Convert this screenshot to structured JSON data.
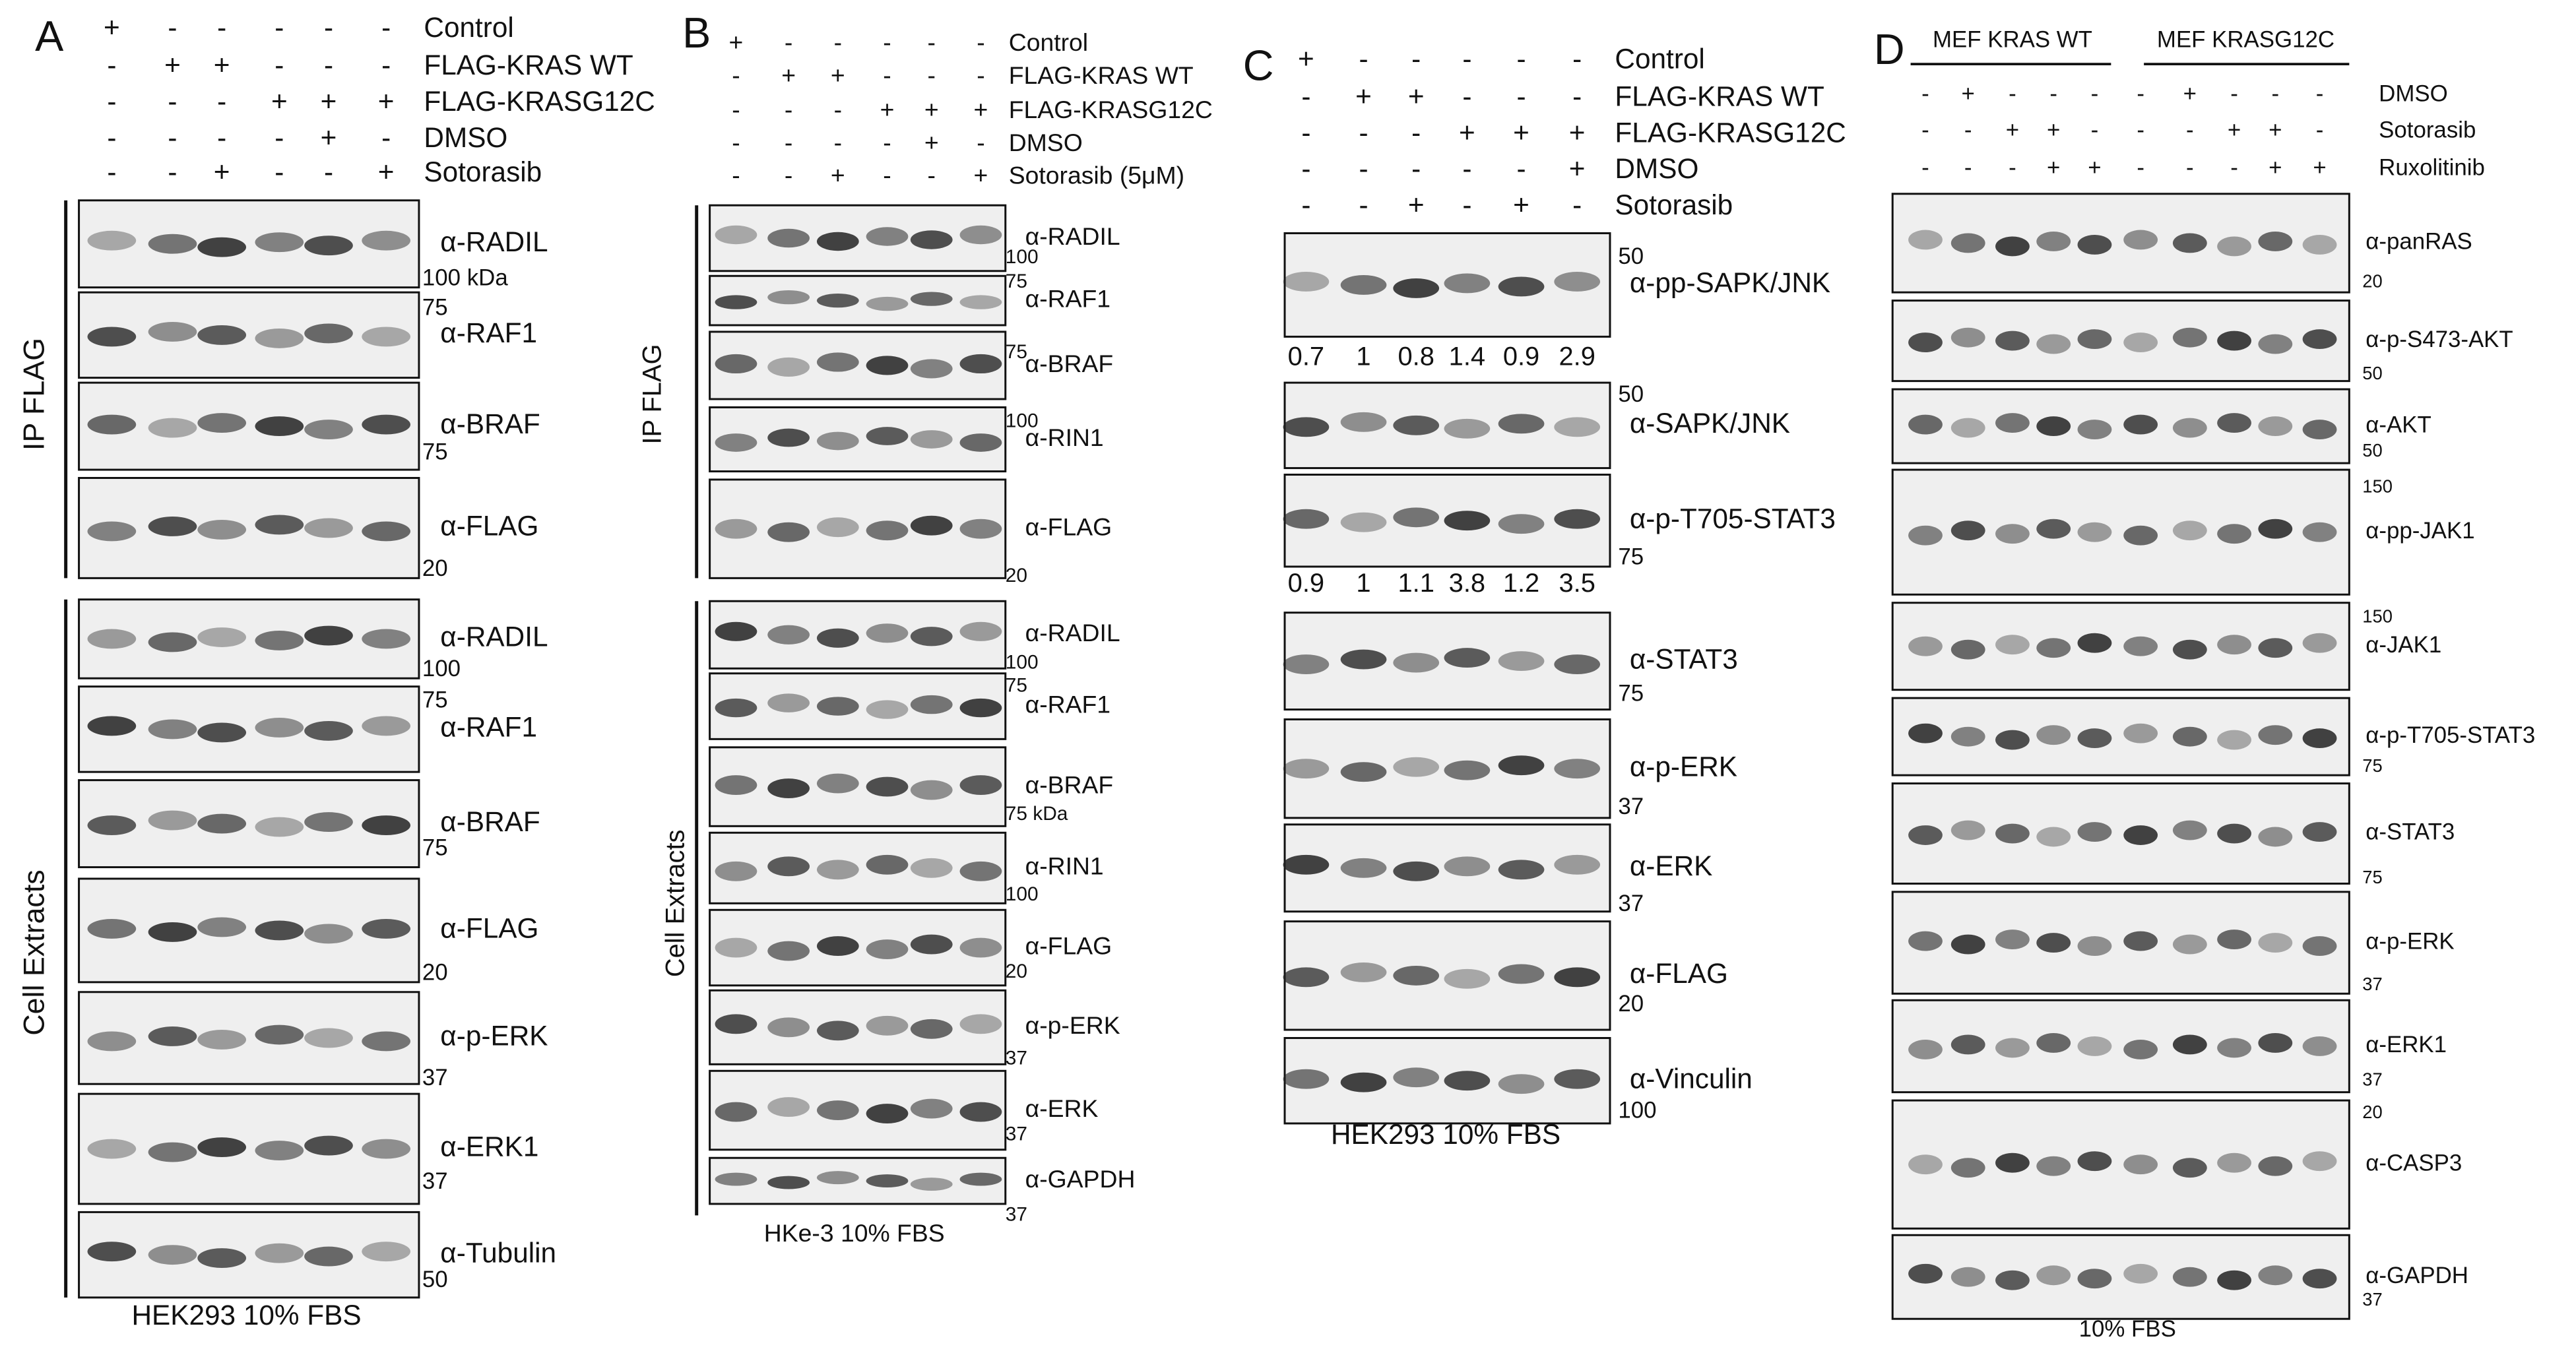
{
  "panels": [
    {
      "letter": "A",
      "conditions": [
        {
          "label": "Control",
          "signs": [
            "+",
            "-",
            "-",
            "-",
            "-",
            "-"
          ]
        },
        {
          "label": "FLAG-KRAS WT",
          "signs": [
            "-",
            "+",
            "+",
            "-",
            "-",
            "-"
          ]
        },
        {
          "label": "FLAG-KRASG12C",
          "signs": [
            "-",
            "-",
            "-",
            "+",
            "+",
            "+"
          ]
        },
        {
          "label": "DMSO",
          "signs": [
            "-",
            "-",
            "-",
            "-",
            "+",
            "-"
          ]
        },
        {
          "label": "Sotorasib",
          "signs": [
            "-",
            "-",
            "+",
            "-",
            "-",
            "+"
          ]
        }
      ],
      "sections": [
        {
          "label": "IP FLAG",
          "blots": [
            {
              "label": "α-RADIL",
              "marker": "100 kDa"
            },
            {
              "label": "α-RAF1",
              "marker": "75"
            },
            {
              "label": "α-BRAF",
              "marker": "75"
            },
            {
              "label": "α-FLAG",
              "marker": "20"
            }
          ]
        },
        {
          "label": "Cell Extracts",
          "blots": [
            {
              "label": "α-RADIL",
              "marker": "100"
            },
            {
              "label": "α-RAF1",
              "marker": "75"
            },
            {
              "label": "α-BRAF",
              "marker": "75"
            },
            {
              "label": "α-FLAG",
              "marker": "20"
            },
            {
              "label": "α-p-ERK",
              "marker": "37"
            },
            {
              "label": "α-ERK1",
              "marker": "37"
            },
            {
              "label": "α-Tubulin",
              "marker": "50"
            }
          ]
        }
      ],
      "footer": "HEK293 10% FBS"
    },
    {
      "letter": "B",
      "conditions": [
        {
          "label": "Control",
          "signs": [
            "+",
            "-",
            "-",
            "-",
            "-",
            "-"
          ]
        },
        {
          "label": "FLAG-KRAS WT",
          "signs": [
            "-",
            "+",
            "+",
            "-",
            "-",
            "-"
          ]
        },
        {
          "label": "FLAG-KRASG12C",
          "signs": [
            "-",
            "-",
            "-",
            "+",
            "+",
            "+"
          ]
        },
        {
          "label": "DMSO",
          "signs": [
            "-",
            "-",
            "-",
            "-",
            "+",
            "-"
          ]
        },
        {
          "label": "Sotorasib (5μM)",
          "signs": [
            "-",
            "-",
            "+",
            "-",
            "-",
            "+"
          ]
        }
      ],
      "sections": [
        {
          "label": "IP FLAG",
          "blots": [
            {
              "label": "α-RADIL",
              "marker": "100"
            },
            {
              "label": "α-RAF1",
              "marker": "75"
            },
            {
              "label": "α-BRAF",
              "marker": "75"
            },
            {
              "label": "α-RIN1",
              "marker": "100"
            },
            {
              "label": "α-FLAG",
              "marker": "20"
            }
          ]
        },
        {
          "label": "Cell Extracts",
          "blots": [
            {
              "label": "α-RADIL",
              "marker": "100"
            },
            {
              "label": "α-RAF1",
              "marker": "75"
            },
            {
              "label": "α-BRAF",
              "marker": "75 kDa"
            },
            {
              "label": "α-RIN1",
              "marker": "100"
            },
            {
              "label": "α-FLAG",
              "marker": "20"
            },
            {
              "label": "α-p-ERK",
              "marker": "37"
            },
            {
              "label": "α-ERK",
              "marker": "37"
            },
            {
              "label": "α-GAPDH",
              "marker": "37"
            }
          ]
        }
      ],
      "footer": "HKe-3 10% FBS"
    },
    {
      "letter": "C",
      "conditions": [
        {
          "label": "Control",
          "signs": [
            "+",
            "-",
            "-",
            "-",
            "-",
            "-"
          ]
        },
        {
          "label": "FLAG-KRAS WT",
          "signs": [
            "-",
            "+",
            "+",
            "-",
            "-",
            "-"
          ]
        },
        {
          "label": "FLAG-KRASG12C",
          "signs": [
            "-",
            "-",
            "-",
            "+",
            "+",
            "+"
          ]
        },
        {
          "label": "DMSO",
          "signs": [
            "-",
            "-",
            "-",
            "-",
            "-",
            "+"
          ]
        },
        {
          "label": "Sotorasib",
          "signs": [
            "-",
            "-",
            "+",
            "-",
            "+",
            "-"
          ]
        }
      ],
      "blots": [
        {
          "label": "α-pp-SAPK/JNK",
          "marker": "50",
          "quant": [
            "0.7",
            "1",
            "0.8",
            "1.4",
            "0.9",
            "2.9"
          ]
        },
        {
          "label": "α-SAPK/JNK",
          "marker": "50"
        },
        {
          "label": "α-p-T705-STAT3",
          "marker": "75",
          "quant": [
            "0.9",
            "1",
            "1.1",
            "3.8",
            "1.2",
            "3.5"
          ]
        },
        {
          "label": "α-STAT3",
          "marker": "75"
        },
        {
          "label": "α-p-ERK",
          "marker": "37"
        },
        {
          "label": "α-ERK",
          "marker": "37"
        },
        {
          "label": "α-FLAG",
          "marker": "20"
        },
        {
          "label": "α-Vinculin",
          "marker": "100"
        }
      ],
      "footer": "HEK293 10% FBS"
    },
    {
      "letter": "D",
      "headers": [
        "MEF KRAS WT",
        "MEF KRASG12C"
      ],
      "conditions": [
        {
          "label": "DMSO",
          "signs": [
            "-",
            "+",
            "-",
            "-",
            "-",
            "-",
            "+",
            "-",
            "-",
            "-"
          ]
        },
        {
          "label": "Sotorasib",
          "signs": [
            "-",
            "-",
            "+",
            "+",
            "-",
            "-",
            "-",
            "+",
            "+",
            "-"
          ]
        },
        {
          "label": "Ruxolitinib",
          "signs": [
            "-",
            "-",
            "-",
            "+",
            "+",
            "-",
            "-",
            "-",
            "+",
            "+"
          ]
        }
      ],
      "blots": [
        {
          "label": "α-panRAS",
          "marker": "20"
        },
        {
          "label": "α-p-S473-AKT",
          "marker": "50"
        },
        {
          "label": "α-AKT",
          "marker": "50"
        },
        {
          "label": "α-pp-JAK1",
          "marker": "150"
        },
        {
          "label": "α-JAK1",
          "marker": "150"
        },
        {
          "label": "α-p-T705-STAT3",
          "marker": "75"
        },
        {
          "label": "α-STAT3",
          "marker": "75"
        },
        {
          "label": "α-p-ERK",
          "marker": "37"
        },
        {
          "label": "α-ERK1",
          "marker": "37"
        },
        {
          "label": "α-CASP3",
          "marker": "20"
        },
        {
          "label": "α-GAPDH",
          "marker": "37"
        }
      ],
      "footer": "10% FBS"
    }
  ]
}
